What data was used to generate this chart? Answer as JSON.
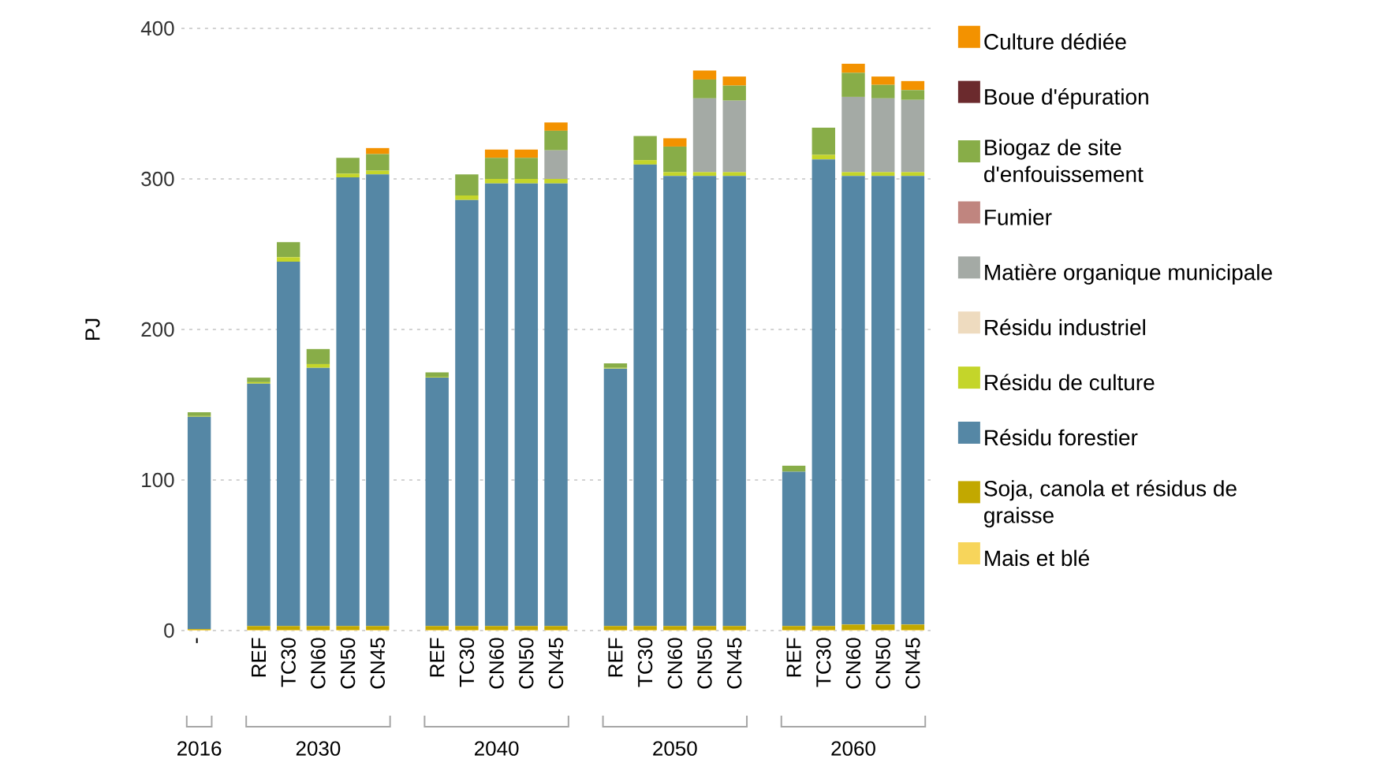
{
  "chart_data": {
    "type": "bar",
    "stacked": true,
    "ylabel": "PJ",
    "ylim": [
      0,
      400
    ],
    "yticks": [
      0,
      100,
      200,
      300,
      400
    ],
    "grid": "y",
    "legend": "right",
    "categories": [
      "-",
      null,
      "REF",
      "TC30",
      "CN60",
      "CN50",
      "CN45",
      null,
      "REF",
      "TC30",
      "CN60",
      "CN50",
      "CN45",
      null,
      "REF",
      "TC30",
      "CN60",
      "CN50",
      "CN45",
      null,
      "REF",
      "TC30",
      "CN60",
      "CN50",
      "CN45"
    ],
    "annotations": [
      "2016",
      "2030",
      "2040",
      "2050",
      "2060"
    ],
    "series": [
      {
        "name": "Mais et blé",
        "color": "#f7d55b",
        "values": [
          0.5,
          null,
          0.5,
          0.5,
          0.5,
          0.5,
          0.5,
          null,
          0.5,
          0.5,
          0.5,
          0.5,
          0.5,
          null,
          0.5,
          0.5,
          0.5,
          0.5,
          0.5,
          null,
          0.5,
          0.5,
          0.5,
          0.5,
          0.5
        ]
      },
      {
        "name": "Soja, canola et résidus de graisse",
        "color": "#c2a800",
        "values": [
          0.5,
          null,
          2.5,
          2.5,
          2.5,
          2.5,
          2.5,
          null,
          2.5,
          2.5,
          2.5,
          2.5,
          2.5,
          null,
          2.5,
          2.5,
          2.5,
          2.5,
          2.5,
          null,
          2.5,
          2.5,
          3.5,
          3.5,
          3.5
        ]
      },
      {
        "name": "Résidu forestier",
        "color": "#5587a5",
        "values": [
          141,
          null,
          161,
          242,
          171.5,
          298,
          300,
          null,
          165,
          283,
          294,
          294,
          294,
          null,
          171,
          306.5,
          299,
          299,
          299,
          null,
          102.5,
          310,
          298,
          298,
          298
        ]
      },
      {
        "name": "Résidu de culture",
        "color": "#c4d52a",
        "values": [
          0.5,
          null,
          1,
          3,
          2.5,
          2.5,
          2.5,
          null,
          0.5,
          3,
          3,
          3,
          3,
          null,
          0.5,
          3,
          2.5,
          2.5,
          2.5,
          null,
          null,
          3,
          2.5,
          2.5,
          2.5
        ]
      },
      {
        "name": "Résidu industriel",
        "color": "#eedbbf",
        "values": [
          0,
          null,
          0,
          0,
          0,
          0,
          0,
          null,
          0,
          0,
          0,
          0,
          0,
          null,
          0,
          0,
          0,
          0,
          0,
          null,
          0,
          0,
          0,
          0,
          0
        ]
      },
      {
        "name": "Matière organique municipale",
        "color": "#a4aaa5",
        "values": [
          0,
          null,
          0,
          0,
          0,
          0,
          0,
          null,
          0,
          0,
          0,
          null,
          19,
          null,
          0,
          0,
          0,
          49,
          47.5,
          null,
          0,
          0,
          50,
          49,
          48
        ]
      },
      {
        "name": "Fumier",
        "color": "#c0857f",
        "values": [
          0,
          null,
          0,
          0,
          0,
          0,
          0,
          null,
          0,
          0,
          0,
          0,
          0,
          null,
          0,
          0,
          0,
          0,
          0,
          null,
          0,
          0,
          0,
          0,
          0
        ]
      },
      {
        "name": "Biogaz de site d'enfouissement",
        "color": "#88ad48",
        "values": [
          2.5,
          null,
          3,
          10,
          10,
          10.5,
          11,
          null,
          3,
          14,
          14,
          14,
          13,
          null,
          3,
          16,
          17,
          12.5,
          10,
          null,
          4,
          18,
          16,
          9,
          6.5
        ]
      },
      {
        "name": "Boue d'épuration",
        "color": "#6b2a2d",
        "values": [
          0,
          null,
          0,
          0,
          0,
          0,
          0,
          null,
          0,
          0,
          0,
          0,
          0,
          null,
          0,
          0,
          0,
          0,
          0,
          null,
          0,
          0,
          0,
          0,
          0
        ]
      },
      {
        "name": "Culture dédiée",
        "color": "#f39200",
        "values": [
          0,
          null,
          0,
          0,
          0,
          0,
          4,
          null,
          0,
          0,
          5.5,
          5.5,
          5.5,
          null,
          0,
          0,
          5.5,
          6,
          6,
          null,
          0,
          0,
          6,
          5.5,
          6
        ]
      }
    ]
  }
}
